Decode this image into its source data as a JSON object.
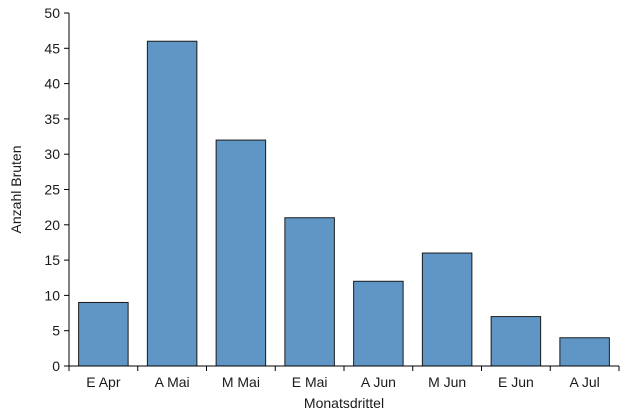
{
  "chart_data": {
    "type": "bar",
    "title": "",
    "xlabel": "Monatsdrittel",
    "ylabel": "Anzahl Bruten",
    "categories": [
      "E Apr",
      "A Mai",
      "M Mai",
      "E Mai",
      "A Jun",
      "M Jun",
      "E Jun",
      "A Jul"
    ],
    "values": [
      9,
      46,
      32,
      21,
      12,
      16,
      7,
      4
    ],
    "ylim": [
      0,
      50
    ],
    "yticks": [
      0,
      5,
      10,
      15,
      20,
      25,
      30,
      35,
      40,
      45,
      50
    ],
    "grid": false,
    "legend": "none",
    "colors": {
      "bar": "#6096c6",
      "bar_edge": "#1a1a1a"
    }
  }
}
